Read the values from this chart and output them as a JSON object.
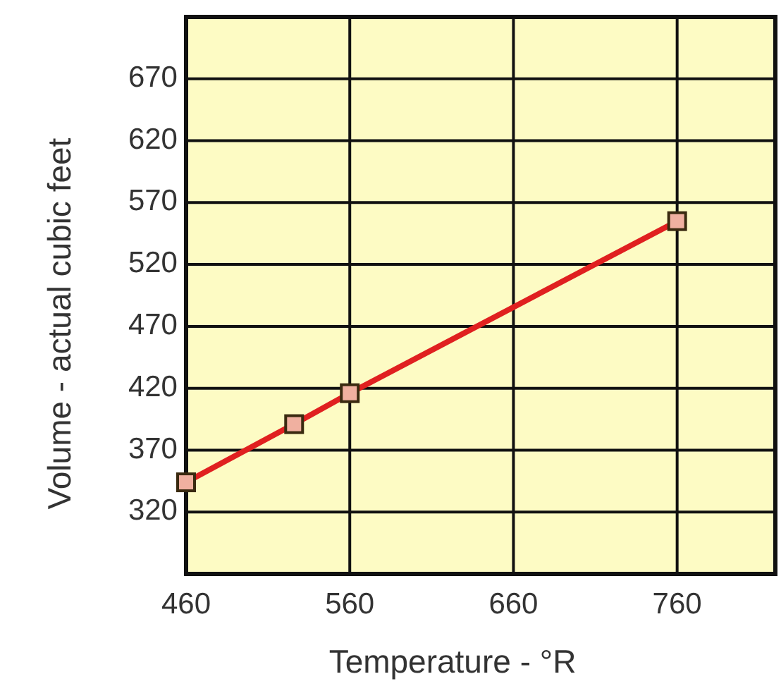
{
  "chart_data": {
    "type": "line",
    "xlabel": "Temperature - °R",
    "ylabel": "Volume - actual cubic feet",
    "x": [
      460,
      526,
      560,
      760
    ],
    "series": [
      {
        "color": "#e02020",
        "values": [
          344,
          391,
          416,
          555
        ]
      }
    ],
    "marker": "square",
    "grid": true,
    "xlim": [
      460,
      820
    ],
    "xticks": [
      460,
      560,
      660,
      760
    ],
    "ylim": [
      270,
      720
    ],
    "yticks": [
      320,
      370,
      420,
      470,
      520,
      570,
      620,
      670
    ]
  }
}
